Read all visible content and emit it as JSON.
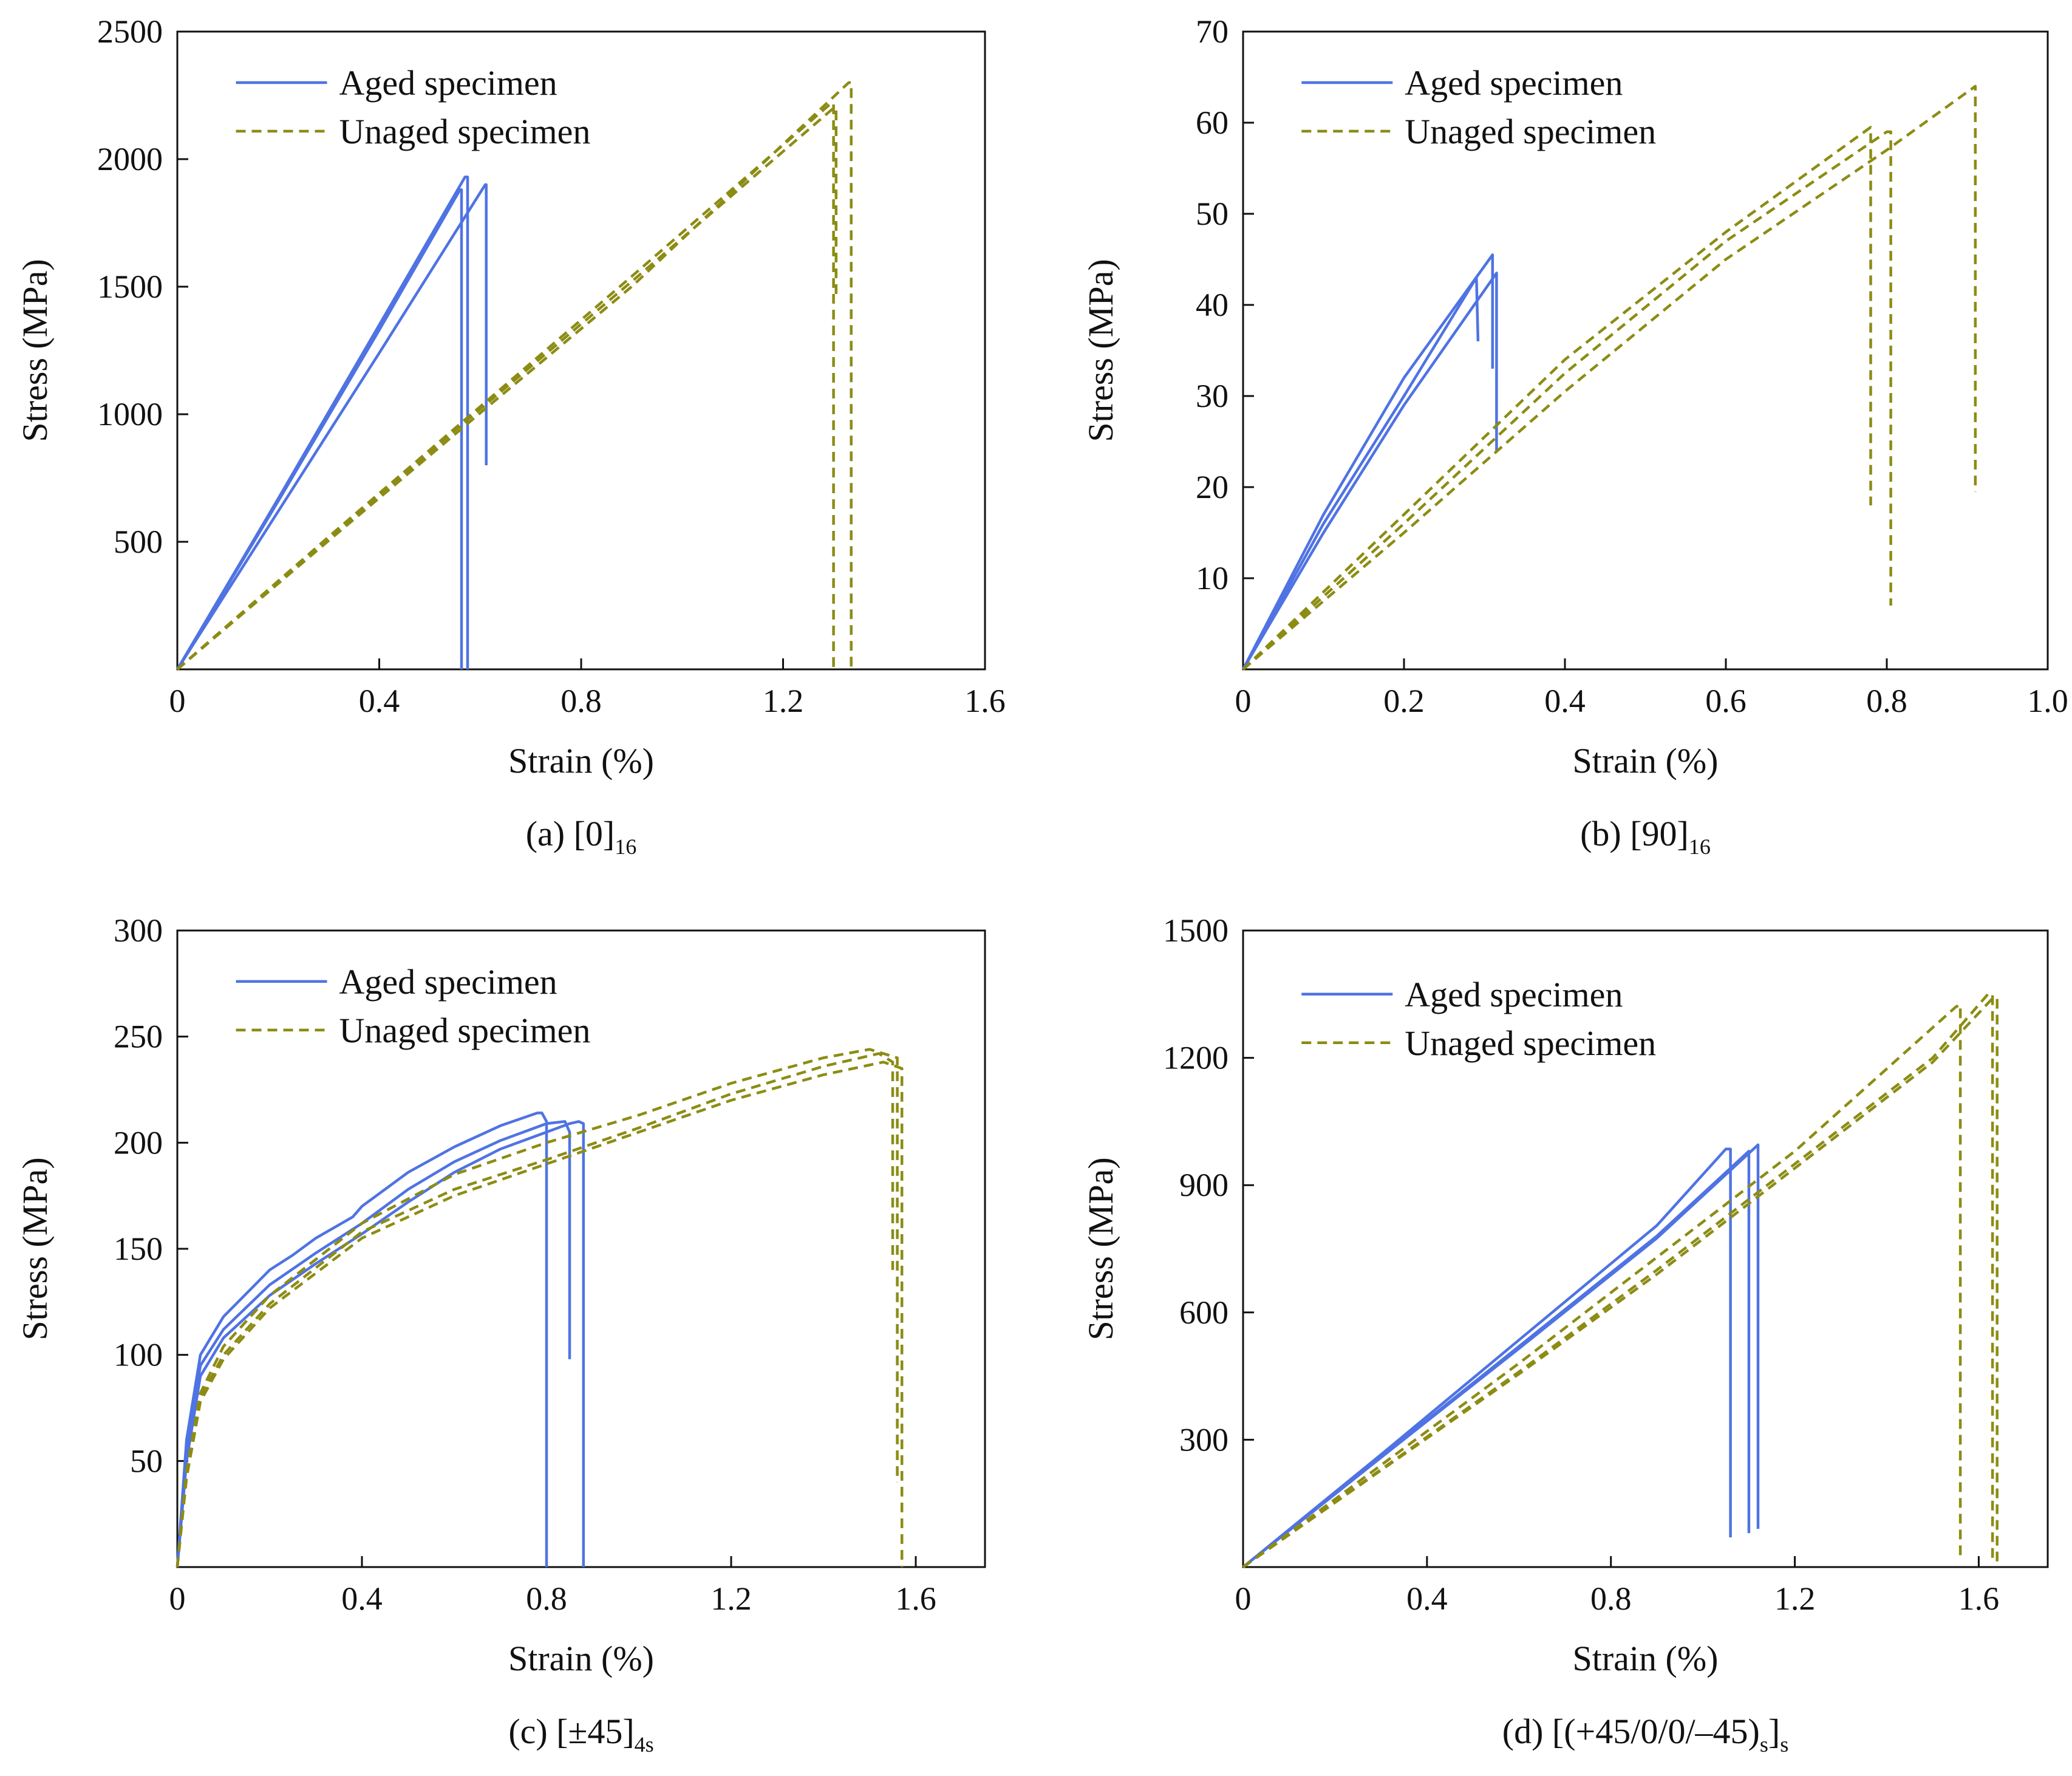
{
  "figure": {
    "colors": {
      "aged": "#4f73e3",
      "unaged": "#8c8c14",
      "axis": "#111111"
    }
  },
  "chart_data": [
    {
      "id": "a",
      "type": "line",
      "caption": {
        "main": "(a) [0]",
        "sub": "16"
      },
      "xlabel": "Strain (%)",
      "ylabel": "Stress (MPa)",
      "xlim": [
        0,
        1.6
      ],
      "ylim": [
        0,
        2500
      ],
      "xticks": [
        0,
        0.4,
        0.8,
        1.2,
        1.6
      ],
      "xtick_labels": [
        "0",
        "0.4",
        "0.8",
        "1.2",
        "1.6"
      ],
      "yticks": [
        500,
        1000,
        1500,
        2000,
        2500
      ],
      "ytick_labels": [
        "500",
        "1000",
        "1500",
        "2000",
        "2500"
      ],
      "legend": {
        "position": "top-left",
        "entries": [
          "Aged specimen",
          "Unaged specimen"
        ]
      },
      "series": [
        {
          "name": "Aged specimen",
          "style": "solid",
          "x": [
            0,
            0.2,
            0.4,
            0.56,
            0.563,
            0.563
          ],
          "y": [
            0,
            660,
            1330,
            1880,
            1880,
            0
          ]
        },
        {
          "name": "Aged specimen",
          "style": "solid",
          "x": [
            0,
            0.2,
            0.4,
            0.57,
            0.575,
            0.575
          ],
          "y": [
            0,
            670,
            1350,
            1930,
            1930,
            0
          ]
        },
        {
          "name": "Aged specimen",
          "style": "solid",
          "x": [
            0,
            0.2,
            0.4,
            0.61,
            0.612,
            0.612
          ],
          "y": [
            0,
            620,
            1240,
            1900,
            1900,
            800
          ]
        },
        {
          "name": "Unaged specimen",
          "style": "dashed",
          "x": [
            0,
            0.3,
            0.6,
            0.9,
            1.29,
            1.3,
            1.3
          ],
          "y": [
            0,
            520,
            1030,
            1540,
            2210,
            2220,
            0
          ]
        },
        {
          "name": "Unaged specimen",
          "style": "dashed",
          "x": [
            0,
            0.3,
            0.6,
            0.9,
            1.3,
            1.305,
            1.305
          ],
          "y": [
            0,
            515,
            1020,
            1520,
            2200,
            2200,
            1450
          ]
        },
        {
          "name": "Unaged specimen",
          "style": "dashed",
          "x": [
            0,
            0.3,
            0.6,
            0.9,
            1.33,
            1.335,
            1.335
          ],
          "y": [
            0,
            505,
            1005,
            1500,
            2300,
            2300,
            0
          ]
        }
      ]
    },
    {
      "id": "b",
      "type": "line",
      "caption": {
        "main": "(b) [90]",
        "sub": "16"
      },
      "xlabel": "Strain (%)",
      "ylabel": "Stress (MPa)",
      "xlim": [
        0,
        1.0
      ],
      "ylim": [
        0,
        70
      ],
      "xticks": [
        0,
        0.2,
        0.4,
        0.6,
        0.8,
        1.0
      ],
      "xtick_labels": [
        "0",
        "0.2",
        "0.4",
        "0.6",
        "0.8",
        "1.0"
      ],
      "yticks": [
        10,
        20,
        30,
        40,
        50,
        60,
        70
      ],
      "ytick_labels": [
        "10",
        "20",
        "30",
        "40",
        "50",
        "60",
        "70"
      ],
      "legend": {
        "position": "top-left",
        "entries": [
          "Aged specimen",
          "Unaged specimen"
        ]
      },
      "series": [
        {
          "name": "Aged specimen",
          "style": "solid",
          "x": [
            0,
            0.1,
            0.2,
            0.29,
            0.29,
            0.292
          ],
          "y": [
            0,
            16,
            30,
            43,
            43,
            36
          ]
        },
        {
          "name": "Aged specimen",
          "style": "solid",
          "x": [
            0,
            0.1,
            0.2,
            0.31,
            0.31,
            0.31
          ],
          "y": [
            0,
            17,
            32,
            45.5,
            45.5,
            33
          ]
        },
        {
          "name": "Aged specimen",
          "style": "solid",
          "x": [
            0,
            0.1,
            0.2,
            0.315,
            0.315,
            0.315
          ],
          "y": [
            0,
            15,
            29,
            43.5,
            43.5,
            24
          ]
        },
        {
          "name": "Unaged specimen",
          "style": "dashed",
          "x": [
            0,
            0.2,
            0.4,
            0.6,
            0.78,
            0.78
          ],
          "y": [
            0,
            17,
            34,
            48,
            59.5,
            18
          ]
        },
        {
          "name": "Unaged specimen",
          "style": "dashed",
          "x": [
            0,
            0.2,
            0.4,
            0.6,
            0.8,
            0.805,
            0.805
          ],
          "y": [
            0,
            16,
            32.5,
            47,
            59,
            59,
            7
          ]
        },
        {
          "name": "Unaged specimen",
          "style": "dashed",
          "x": [
            0,
            0.2,
            0.4,
            0.6,
            0.8,
            0.91,
            0.91
          ],
          "y": [
            0,
            15,
            30.5,
            45,
            57,
            64,
            19.5
          ]
        }
      ]
    },
    {
      "id": "c",
      "type": "line",
      "caption": {
        "main": "(c) [±45]",
        "sub": "4s"
      },
      "xlabel": "Strain (%)",
      "ylabel": "Stress (MPa)",
      "xlim": [
        0,
        1.75
      ],
      "ylim": [
        0,
        300
      ],
      "xticks": [
        0,
        0.4,
        0.8,
        1.2,
        1.6
      ],
      "xtick_labels": [
        "0",
        "0.4",
        "0.8",
        "1.2",
        "1.6"
      ],
      "yticks": [
        50,
        100,
        150,
        200,
        250,
        300
      ],
      "ytick_labels": [
        "50",
        "100",
        "150",
        "200",
        "250",
        "300"
      ],
      "legend": {
        "position": "top-left",
        "entries": [
          "Aged specimen",
          "Unaged specimen"
        ]
      },
      "series": [
        {
          "name": "Aged specimen",
          "style": "solid",
          "x": [
            0,
            0.02,
            0.05,
            0.1,
            0.2,
            0.25,
            0.3,
            0.38,
            0.4,
            0.5,
            0.6,
            0.7,
            0.78,
            0.79,
            0.8,
            0.8
          ],
          "y": [
            0,
            60,
            100,
            118,
            140,
            147,
            155,
            165,
            170,
            186,
            198,
            208,
            214,
            214,
            210,
            0
          ]
        },
        {
          "name": "Aged specimen",
          "style": "solid",
          "x": [
            0,
            0.02,
            0.05,
            0.1,
            0.2,
            0.3,
            0.4,
            0.5,
            0.6,
            0.7,
            0.8,
            0.84,
            0.85,
            0.85
          ],
          "y": [
            0,
            55,
            95,
            112,
            133,
            148,
            162,
            178,
            191,
            201,
            209,
            210,
            205,
            98
          ]
        },
        {
          "name": "Aged specimen",
          "style": "solid",
          "x": [
            0,
            0.02,
            0.05,
            0.1,
            0.2,
            0.3,
            0.4,
            0.5,
            0.6,
            0.7,
            0.8,
            0.85,
            0.87,
            0.88,
            0.88
          ],
          "y": [
            0,
            50,
            90,
            108,
            128,
            143,
            157,
            172,
            186,
            197,
            205,
            209,
            210,
            209,
            0
          ]
        },
        {
          "name": "Unaged specimen",
          "style": "dashed",
          "x": [
            0,
            0.02,
            0.05,
            0.1,
            0.2,
            0.4,
            0.6,
            0.8,
            1.0,
            1.2,
            1.4,
            1.5,
            1.56,
            1.56
          ],
          "y": [
            0,
            45,
            82,
            104,
            128,
            162,
            185,
            200,
            213,
            228,
            240,
            244,
            240,
            40
          ]
        },
        {
          "name": "Unaged specimen",
          "style": "dashed",
          "x": [
            0,
            0.02,
            0.05,
            0.1,
            0.2,
            0.4,
            0.6,
            0.8,
            1.0,
            1.2,
            1.4,
            1.52,
            1.55,
            1.55
          ],
          "y": [
            0,
            45,
            80,
            100,
            124,
            158,
            178,
            192,
            207,
            223,
            236,
            242,
            238,
            140
          ]
        },
        {
          "name": "Unaged specimen",
          "style": "dashed",
          "x": [
            0,
            0.02,
            0.05,
            0.1,
            0.2,
            0.4,
            0.6,
            0.8,
            1.0,
            1.2,
            1.4,
            1.53,
            1.57,
            1.57
          ],
          "y": [
            0,
            42,
            78,
            98,
            122,
            155,
            175,
            190,
            205,
            220,
            232,
            238,
            235,
            0
          ]
        }
      ]
    },
    {
      "id": "d",
      "type": "line",
      "caption": {
        "main": "(d) [(+45/0/0/–45)",
        "sub": "s",
        "main2": "]",
        "sub2": "s"
      },
      "xlabel": "Strain (%)",
      "ylabel": "Stress (MPa)",
      "xlim": [
        0,
        1.75
      ],
      "ylim": [
        0,
        1500
      ],
      "xticks": [
        0,
        0.4,
        0.8,
        1.2,
        1.6
      ],
      "xtick_labels": [
        "0",
        "0.4",
        "0.8",
        "1.2",
        "1.6"
      ],
      "yticks": [
        300,
        600,
        900,
        1200,
        1500
      ],
      "ytick_labels": [
        "300",
        "600",
        "900",
        "1200",
        "1500"
      ],
      "legend": {
        "position": "top-left",
        "entries": [
          "Aged specimen",
          "Unaged specimen"
        ]
      },
      "series": [
        {
          "name": "Aged specimen",
          "style": "solid",
          "x": [
            0,
            0.3,
            0.6,
            0.9,
            1.05,
            1.06,
            1.06
          ],
          "y": [
            0,
            265,
            535,
            805,
            985,
            985,
            70
          ]
        },
        {
          "name": "Aged specimen",
          "style": "solid",
          "x": [
            0,
            0.3,
            0.6,
            0.9,
            1.1,
            1.1
          ],
          "y": [
            0,
            260,
            520,
            780,
            980,
            80
          ]
        },
        {
          "name": "Aged specimen",
          "style": "solid",
          "x": [
            0,
            0.3,
            0.6,
            0.9,
            1.12,
            1.12
          ],
          "y": [
            0,
            258,
            515,
            775,
            995,
            90
          ]
        },
        {
          "name": "Unaged specimen",
          "style": "dashed",
          "x": [
            0,
            0.3,
            0.6,
            0.9,
            1.2,
            1.55,
            1.56,
            1.56
          ],
          "y": [
            0,
            240,
            480,
            730,
            980,
            1320,
            1325,
            20
          ]
        },
        {
          "name": "Unaged specimen",
          "style": "dashed",
          "x": [
            0,
            0.3,
            0.6,
            0.9,
            1.2,
            1.5,
            1.62,
            1.63,
            1.63
          ],
          "y": [
            0,
            230,
            460,
            700,
            950,
            1200,
            1350,
            1350,
            10
          ]
        },
        {
          "name": "Unaged specimen",
          "style": "dashed",
          "x": [
            0,
            0.3,
            0.6,
            0.9,
            1.2,
            1.5,
            1.63,
            1.64,
            1.64
          ],
          "y": [
            0,
            228,
            455,
            690,
            940,
            1190,
            1340,
            1340,
            0
          ]
        }
      ]
    }
  ]
}
